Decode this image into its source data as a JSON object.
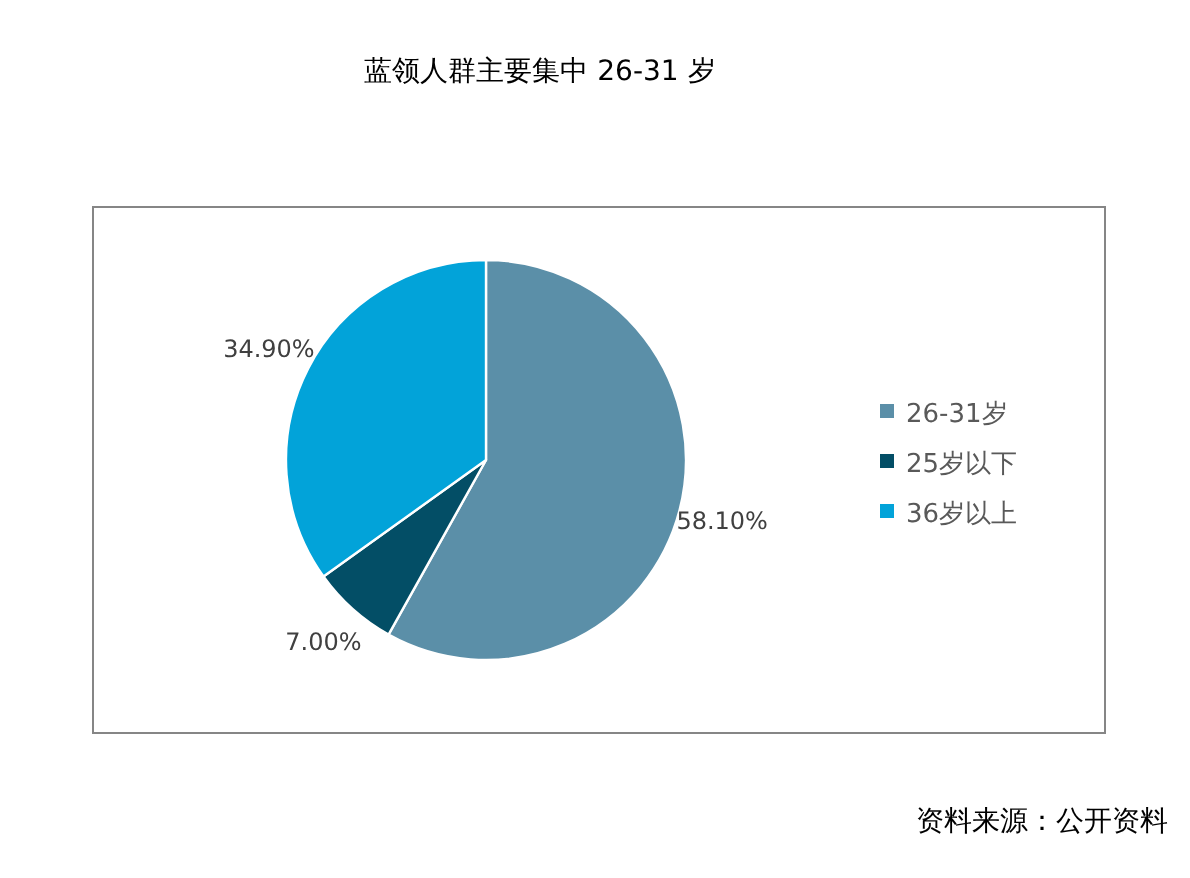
{
  "chart_data": {
    "type": "pie",
    "title": "蓝领人群主要集中 26-31 岁",
    "categories": [
      "26-31岁",
      "25岁以下",
      "36岁以上"
    ],
    "values": [
      58.1,
      7.0,
      34.9
    ],
    "colors": [
      "#5b8fa8",
      "#034e66",
      "#02a3d9"
    ],
    "value_labels": [
      "58.10%",
      "7.00%",
      "34.90%"
    ],
    "legend": "right",
    "annotations": [
      "资料来源：公开资料"
    ]
  }
}
